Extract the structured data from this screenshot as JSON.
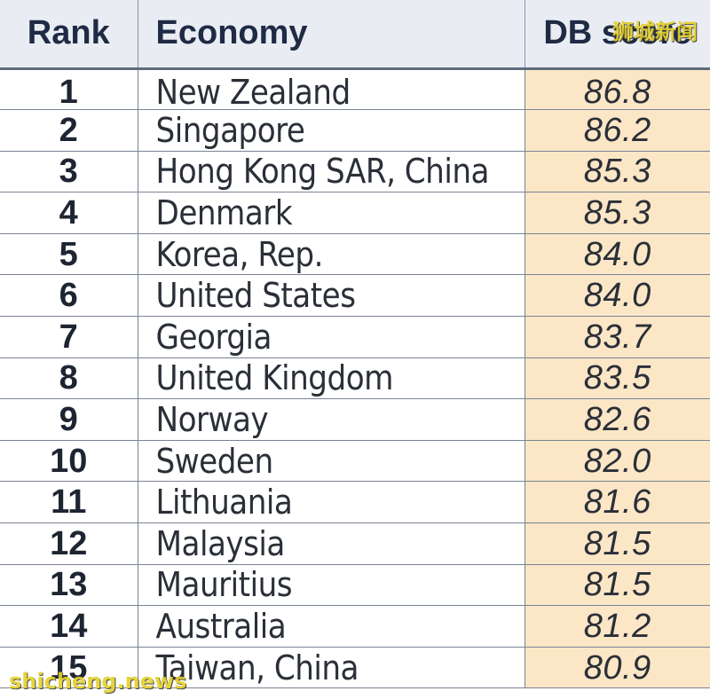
{
  "table": {
    "headers": {
      "rank": "Rank",
      "economy": "Economy",
      "score": "DB score"
    },
    "rows": [
      {
        "rank": "1",
        "economy": "New Zealand",
        "score": "86.8"
      },
      {
        "rank": "2",
        "economy": "Singapore",
        "score": "86.2"
      },
      {
        "rank": "3",
        "economy": "Hong Kong SAR, China",
        "score": "85.3"
      },
      {
        "rank": "4",
        "economy": "Denmark",
        "score": "85.3"
      },
      {
        "rank": "5",
        "economy": "Korea, Rep.",
        "score": "84.0"
      },
      {
        "rank": "6",
        "economy": "United States",
        "score": "84.0"
      },
      {
        "rank": "7",
        "economy": "Georgia",
        "score": "83.7"
      },
      {
        "rank": "8",
        "economy": "United Kingdom",
        "score": "83.5"
      },
      {
        "rank": "9",
        "economy": "Norway",
        "score": "82.6"
      },
      {
        "rank": "10",
        "economy": "Sweden",
        "score": "82.0"
      },
      {
        "rank": "11",
        "economy": "Lithuania",
        "score": "81.6"
      },
      {
        "rank": "12",
        "economy": "Malaysia",
        "score": "81.5"
      },
      {
        "rank": "13",
        "economy": "Mauritius",
        "score": "81.5"
      },
      {
        "rank": "14",
        "economy": "Australia",
        "score": "81.2"
      },
      {
        "rank": "15",
        "economy": "Taiwan, China",
        "score": "80.9"
      }
    ]
  },
  "watermarks": {
    "chinese": "狮城新闻",
    "domain": "shicheng.news"
  },
  "colors": {
    "header_bg": "#e9edf3",
    "score_column_bg": "#fbe6c6",
    "watermark": "#e4d02a"
  }
}
